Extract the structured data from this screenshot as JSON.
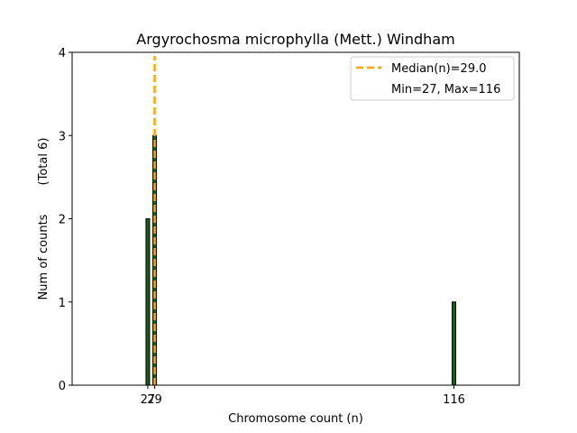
{
  "chart_data": {
    "type": "bar",
    "title": "Argyrochosma microphylla (Mett.) Windham",
    "xlabel": "Chromosome count (n)",
    "ylabel": "Num of counts",
    "ylabel_total": "(Total 6)",
    "xlim": [
      5,
      135
    ],
    "ylim": [
      0,
      4
    ],
    "yticks": [
      0,
      1,
      2,
      3,
      4
    ],
    "xticks": [
      27,
      29,
      116
    ],
    "bins": [
      {
        "x": 27,
        "count": 2
      },
      {
        "x": 29,
        "count": 3
      },
      {
        "x": 116,
        "count": 1
      }
    ],
    "median": 29.0,
    "legend": {
      "position": "top-right",
      "median_label": "Median(n)=29.0",
      "range_label": "Min=27, Max=116"
    },
    "colors": {
      "bar": "#1a5c1a",
      "median": "#ffa500"
    }
  }
}
